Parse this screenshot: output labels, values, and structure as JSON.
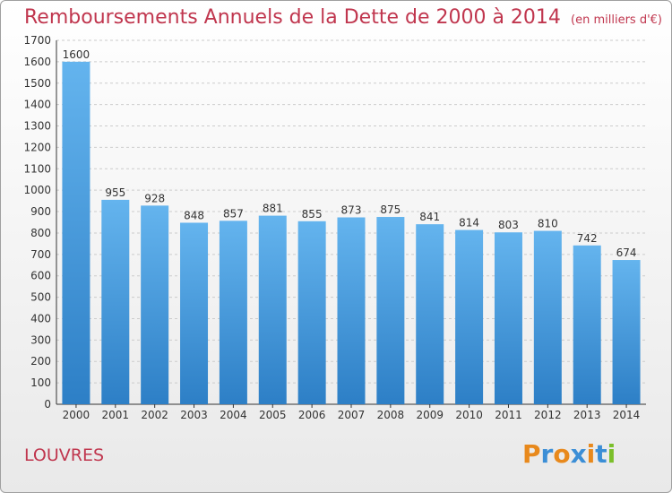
{
  "header": {
    "title": "Remboursements Annuels de la Dette de 2000 à 2014",
    "unit": "(en milliers d'€)"
  },
  "footer": {
    "commune": "LOUVRES",
    "logo_text": "Proxiti",
    "logo_colors": [
      "#e8891c",
      "#3b8ed6",
      "#e8891c",
      "#3b8ed6",
      "#e8891c",
      "#3b8ed6",
      "#7bbf2a"
    ]
  },
  "colors": {
    "accent": "#c0364e",
    "bar_top": "#64b4ee",
    "bar_bottom": "#2d7fc6",
    "grid": "#cccccc"
  },
  "chart_data": {
    "type": "bar",
    "title": "Remboursements Annuels de la Dette de 2000 à 2014",
    "xlabel": "",
    "ylabel": "",
    "categories": [
      "2000",
      "2001",
      "2002",
      "2003",
      "2004",
      "2005",
      "2006",
      "2007",
      "2008",
      "2009",
      "2010",
      "2011",
      "2012",
      "2013",
      "2014"
    ],
    "values": [
      1600,
      955,
      928,
      848,
      857,
      881,
      855,
      873,
      875,
      841,
      814,
      803,
      810,
      742,
      674
    ],
    "ylim": [
      0,
      1700
    ],
    "yticks": [
      0,
      100,
      200,
      300,
      400,
      500,
      600,
      700,
      800,
      900,
      1000,
      1100,
      1200,
      1300,
      1400,
      1500,
      1600,
      1700
    ],
    "grid": true,
    "legend": "none"
  }
}
